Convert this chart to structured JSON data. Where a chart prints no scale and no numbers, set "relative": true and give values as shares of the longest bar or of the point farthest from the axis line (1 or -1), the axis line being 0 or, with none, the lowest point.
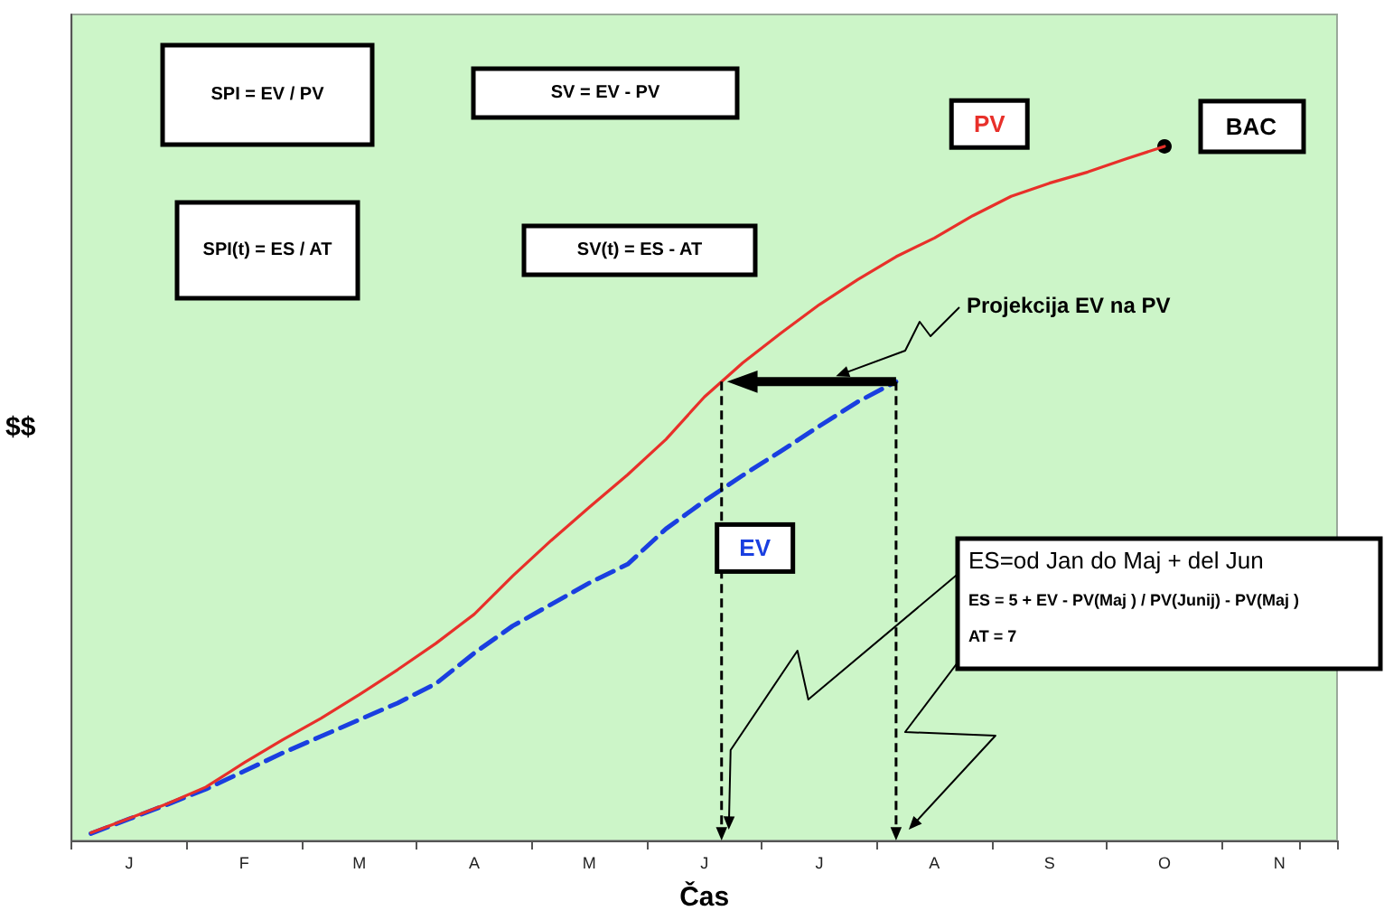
{
  "chart_data": {
    "type": "line",
    "relative": true,
    "xlabel": "Čas",
    "ylabel": "$$",
    "categories": [
      null,
      "J",
      null,
      null,
      "F",
      null,
      null,
      "M",
      null,
      null,
      "A",
      null,
      null,
      "M",
      null,
      null,
      "J",
      null,
      null,
      "J",
      null,
      null,
      "A",
      null,
      null,
      "S",
      null,
      null,
      "O",
      null,
      null,
      "N",
      null
    ],
    "series": [
      {
        "name": "PV",
        "color": "#e8302a",
        "line_style": "solid",
        "values": [
          0.011,
          0.032,
          0.053,
          0.077,
          0.112,
          0.145,
          0.176,
          0.21,
          0.246,
          0.284,
          0.326,
          0.381,
          0.432,
          0.48,
          0.527,
          0.578,
          0.639,
          0.688,
          0.731,
          0.772,
          0.808,
          0.841,
          0.868,
          0.9,
          0.928,
          0.947,
          0.963,
          0.982,
          1.0,
          null,
          null,
          null,
          null
        ]
      },
      {
        "name": "EV",
        "color": "#1a3fe0",
        "line_style": "dashed",
        "values": [
          0.01,
          0.031,
          0.052,
          0.074,
          0.1,
          0.126,
          0.15,
          0.174,
          0.198,
          0.226,
          0.27,
          0.309,
          0.34,
          0.371,
          0.398,
          0.449,
          0.489,
          0.526,
          0.561,
          0.597,
          0.632,
          0.661,
          null,
          null,
          null,
          null,
          null,
          null,
          null,
          null,
          null,
          null,
          null
        ]
      }
    ],
    "annotations": [
      "SPI = EV / PV",
      "SV = EV - PV",
      "SPI(t) = ES / AT",
      "SV(t) = ES - AT",
      {
        "text": "BAC",
        "x": "O",
        "y": 1.0
      },
      "Projekcija EV na PV",
      "ES=od Jan do Maj + del Jun\nES = 5 + EV - PV(Maj ) / PV(Junij) - PV(Maj )\nAT = 7"
    ],
    "grid": false,
    "legend": false,
    "marker": "none"
  }
}
